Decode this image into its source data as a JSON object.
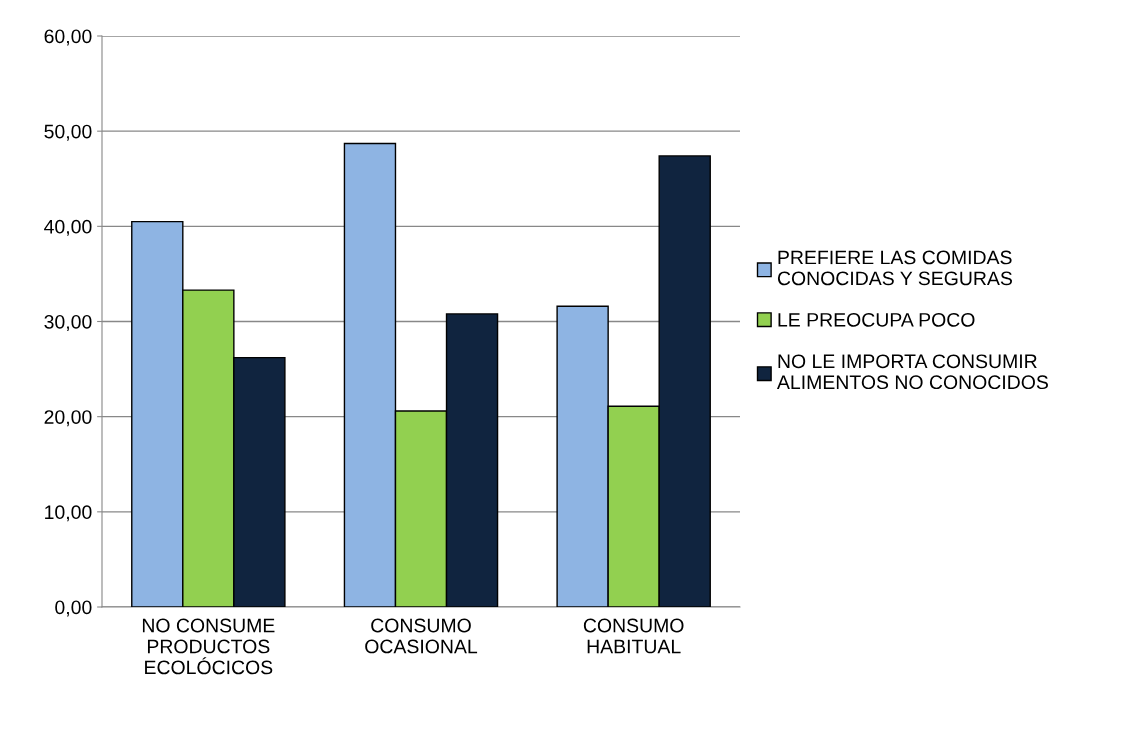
{
  "chart_data": {
    "type": "bar",
    "categories": [
      "NO CONSUME\nPRODUCTOS\nECOLÓCICOS",
      "CONSUMO\nOCASIONAL",
      "CONSUMO\nHABITUAL"
    ],
    "series": [
      {
        "name": "PREFIERE LAS COMIDAS\nCONOCIDAS Y SEGURAS",
        "color": "#8eb4e3",
        "values": [
          40.5,
          48.7,
          31.6
        ]
      },
      {
        "name": "LE PREOCUPA POCO",
        "color": "#92d050",
        "values": [
          33.3,
          20.6,
          21.1
        ]
      },
      {
        "name": "NO LE IMPORTA CONSUMIR\nALIMENTOS NO CONOCIDOS",
        "color": "#10243f",
        "values": [
          26.2,
          30.8,
          47.4
        ]
      }
    ],
    "ylim": [
      0,
      60
    ],
    "yticks": [
      {
        "value": 0,
        "label": "0,00"
      },
      {
        "value": 10,
        "label": "10,00"
      },
      {
        "value": 20,
        "label": "20,00"
      },
      {
        "value": 30,
        "label": "30,00"
      },
      {
        "value": 40,
        "label": "40,00"
      },
      {
        "value": 50,
        "label": "50,00"
      },
      {
        "value": 60,
        "label": "60,00"
      }
    ],
    "grid": "y",
    "legend": "right"
  }
}
